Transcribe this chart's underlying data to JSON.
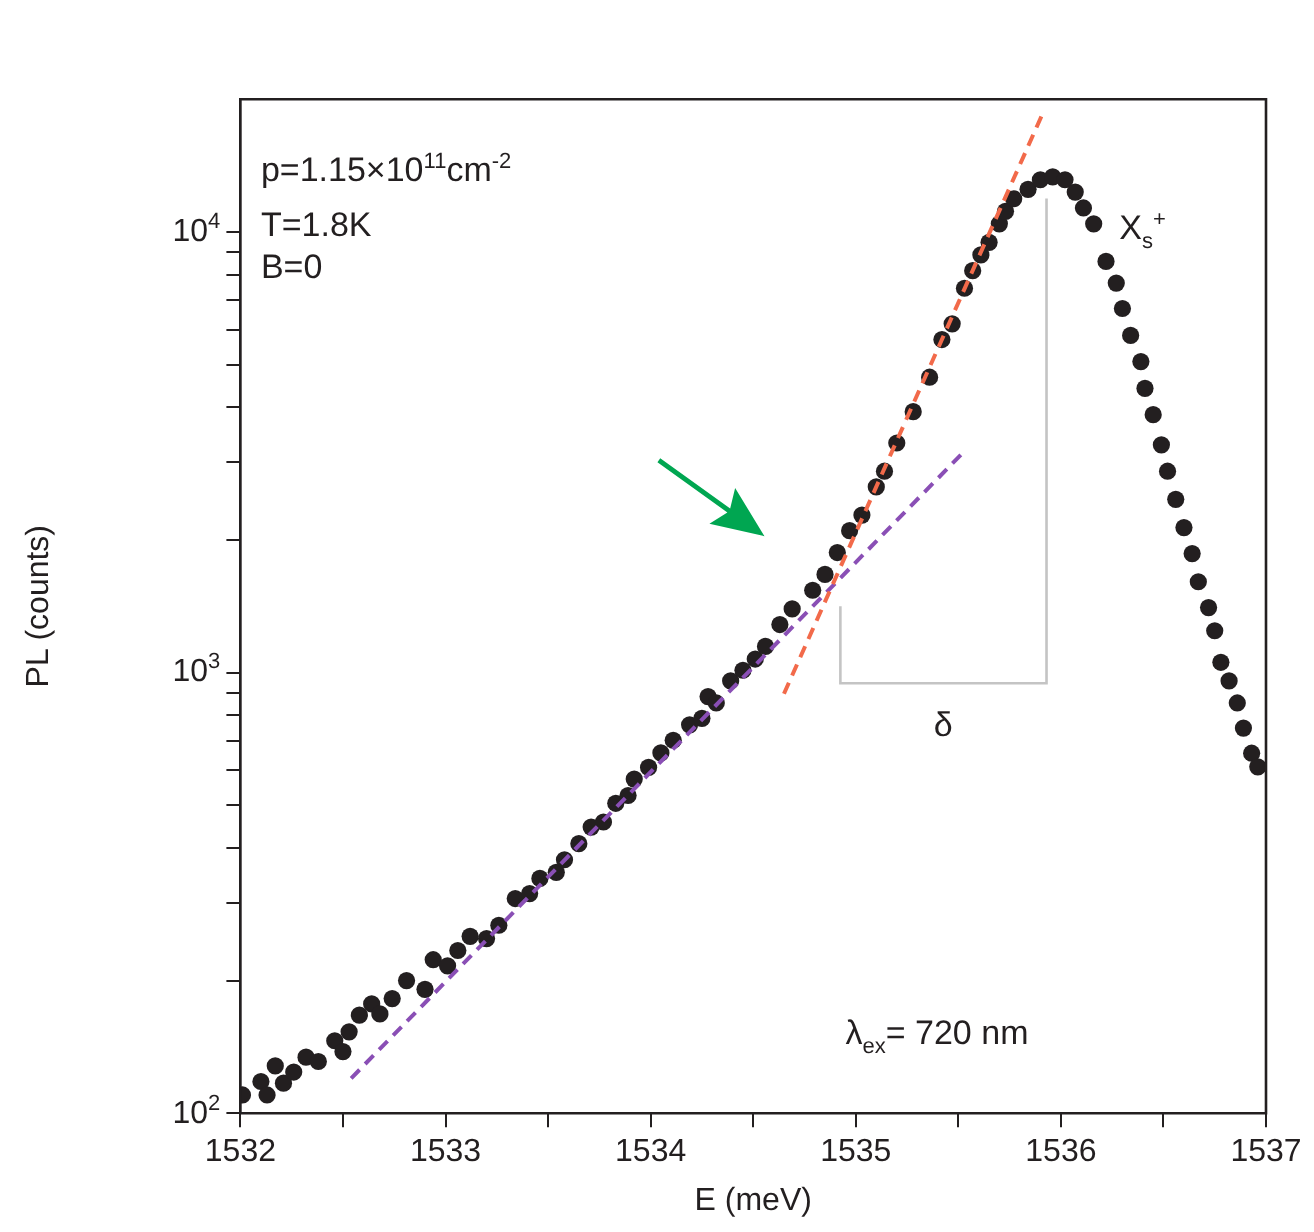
{
  "chart_data": {
    "type": "scatter",
    "xlabel": "E (meV)",
    "ylabel": "PL (counts)",
    "log": "y",
    "grid": false,
    "legend": false,
    "xlim": [
      1532,
      1537
    ],
    "xticks": [
      1532,
      {
        "value": 1532.5,
        "label": null
      },
      1533,
      {
        "value": 1533.5,
        "label": null
      },
      1534,
      {
        "value": 1534.5,
        "label": null
      },
      1535,
      {
        "value": 1535.5,
        "label": null
      },
      1536,
      {
        "value": 1536.5,
        "label": null
      },
      1537
    ],
    "ylim": [
      100,
      20000
    ],
    "yticks": [
      {
        "value": 100,
        "label": "10$^{2}$"
      },
      {
        "value": 200,
        "label": null
      },
      {
        "value": 300,
        "label": null
      },
      {
        "value": 400,
        "label": null
      },
      {
        "value": 500,
        "label": null
      },
      {
        "value": 600,
        "label": null
      },
      {
        "value": 700,
        "label": null
      },
      {
        "value": 800,
        "label": null
      },
      {
        "value": 900,
        "label": null
      },
      {
        "value": 1000,
        "label": "10$^{3}$"
      },
      {
        "value": 2000,
        "label": null
      },
      {
        "value": 3000,
        "label": null
      },
      {
        "value": 4000,
        "label": null
      },
      {
        "value": 5000,
        "label": null
      },
      {
        "value": 6000,
        "label": null
      },
      {
        "value": 7000,
        "label": null
      },
      {
        "value": 8000,
        "label": null
      },
      {
        "value": 9000,
        "label": null
      },
      {
        "value": 10000,
        "label": "10$^{4}$"
      }
    ],
    "annotations": [
      "p=1.15×10$^{11}$cm$^{-2}$",
      "T=1.8K",
      "B=0",
      "X$_{s}$$^{+}$",
      "δ",
      "λ$_{ex}$= 720 nm"
    ],
    "series": [
      {
        "color": "#231f20",
        "marker": "circle",
        "x": [
          1532.01,
          1532.1,
          1532.13,
          1532.17,
          1532.21,
          1532.26,
          1532.32,
          1532.38,
          1532.46,
          1532.5,
          1532.53,
          1532.58,
          1532.64,
          1532.68,
          1532.74,
          1532.81,
          1532.9,
          1532.94,
          1533.01,
          1533.06,
          1533.12,
          1533.2,
          1533.26,
          1533.34,
          1533.41,
          1533.46,
          1533.54,
          1533.58,
          1533.65,
          1533.71,
          1533.77,
          1533.83,
          1533.89,
          1533.92,
          1533.99,
          1534.05,
          1534.11,
          1534.19,
          1534.25,
          1534.28,
          1534.32,
          1534.39,
          1534.45,
          1534.51,
          1534.56,
          1534.63,
          1534.69,
          1534.79,
          1534.85,
          1534.91,
          1534.97,
          1535.03,
          1535.1,
          1535.14,
          1535.2,
          1535.28,
          1535.36,
          1535.42,
          1535.47,
          1535.53,
          1535.57,
          1535.61,
          1535.65,
          1535.7,
          1535.73,
          1535.77,
          1535.84,
          1535.9,
          1535.96,
          1536.02,
          1536.07,
          1536.11,
          1536.16,
          1536.22,
          1536.27,
          1536.3,
          1536.34,
          1536.39,
          1536.41,
          1536.45,
          1536.49,
          1536.52,
          1536.56,
          1536.6,
          1536.64,
          1536.67,
          1536.72,
          1536.75,
          1536.78,
          1536.82,
          1536.86,
          1536.89,
          1536.93,
          1536.96
        ],
        "values": [
          110,
          118,
          110,
          128,
          117,
          124,
          134,
          131,
          146,
          138,
          153,
          167,
          177,
          168,
          182,
          200,
          191,
          223,
          216,
          234,
          252,
          249,
          267,
          307,
          315,
          341,
          352,
          376,
          409,
          446,
          458,
          505,
          526,
          573,
          609,
          657,
          702,
          761,
          787,
          882,
          853,
          957,
          1012,
          1073,
          1146,
          1285,
          1394,
          1537,
          1670,
          1872,
          2099,
          2277,
          2638,
          2863,
          3318,
          3908,
          4679,
          5697,
          6183,
          7447,
          8163,
          8866,
          9466,
          10430,
          11130,
          11890,
          12490,
          13130,
          13330,
          13130,
          12310,
          11330,
          10430,
          8570,
          7650,
          6700,
          5820,
          5076,
          4414,
          3848,
          3286,
          2863,
          2472,
          2133,
          1862,
          1607,
          1404,
          1244,
          1055,
          957,
          853,
          748,
          656,
          611
        ]
      },
      {
        "type": "line",
        "color": "#f26a4a",
        "line_style": "dashed",
        "marker": "none",
        "x": [
          1534.65,
          1535.91
        ],
        "values": [
          895,
          18500
        ]
      },
      {
        "type": "line",
        "color": "#8a4fb5",
        "line_style": "dashed",
        "marker": "none",
        "x": [
          1532.54,
          1535.53
        ],
        "values": [
          120,
          3180
        ]
      }
    ]
  }
}
